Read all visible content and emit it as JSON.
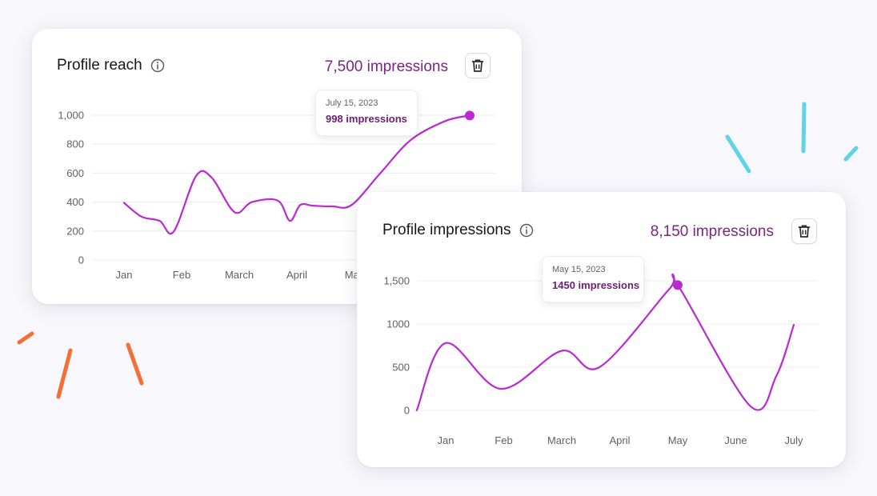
{
  "colors": {
    "line": "#b92bd0",
    "accent_text": "#7a2580",
    "deco_blue": "#5fd3ea",
    "deco_orange": "#f26f35"
  },
  "icons": {
    "info": "info-icon",
    "delete": "trash-icon"
  },
  "card1": {
    "title": "Profile reach",
    "total": "7,500 impressions",
    "tooltip": {
      "date": "July 15, 2023",
      "value": "998 impressions"
    }
  },
  "card2": {
    "title": "Profile impressions",
    "total": "8,150 impressions",
    "tooltip": {
      "date": "May 15, 2023",
      "value": "1450 impressions"
    }
  },
  "chart_data": [
    {
      "type": "line",
      "title": "Profile reach",
      "xlabel": "",
      "ylabel": "",
      "ylim": [
        0,
        1000
      ],
      "ytick_labels": [
        "0",
        "200",
        "400",
        "600",
        "800",
        "1,000"
      ],
      "ytick_values": [
        0,
        200,
        400,
        600,
        800,
        1000
      ],
      "categories": [
        "Jan",
        "Feb",
        "March",
        "April",
        "May"
      ],
      "grid": true,
      "series": [
        {
          "x": [
            0.0,
            0.3,
            0.62,
            0.86,
            1.25,
            1.52,
            1.92,
            2.22,
            2.67,
            2.88,
            3.06,
            3.28,
            3.62,
            3.95,
            4.45,
            4.98,
            5.58,
            6.0
          ],
          "values": [
            395,
            300,
            270,
            195,
            580,
            570,
            330,
            400,
            410,
            270,
            380,
            375,
            370,
            380,
            600,
            830,
            960,
            998
          ]
        }
      ],
      "highlight": {
        "x": 6.0,
        "value": 998,
        "label": "July 15, 2023"
      }
    },
    {
      "type": "line",
      "title": "Profile impressions",
      "xlabel": "",
      "ylabel": "",
      "ylim": [
        0,
        1500
      ],
      "ytick_labels": [
        "0",
        "500",
        "1000",
        "1,500"
      ],
      "ytick_values": [
        0,
        500,
        1000,
        1500
      ],
      "categories": [
        "Jan",
        "Feb",
        "March",
        "April",
        "May",
        "June",
        "July"
      ],
      "grid": true,
      "series": [
        {
          "x": [
            -0.5,
            0.0,
            0.95,
            2.0,
            2.65,
            3.85,
            4.0,
            5.25,
            5.7,
            6.0
          ],
          "values": [
            0,
            780,
            250,
            690,
            500,
            1400,
            1450,
            50,
            400,
            990
          ]
        }
      ],
      "highlight": {
        "x": 4.0,
        "value": 1450,
        "label": "May 15, 2023"
      }
    }
  ]
}
